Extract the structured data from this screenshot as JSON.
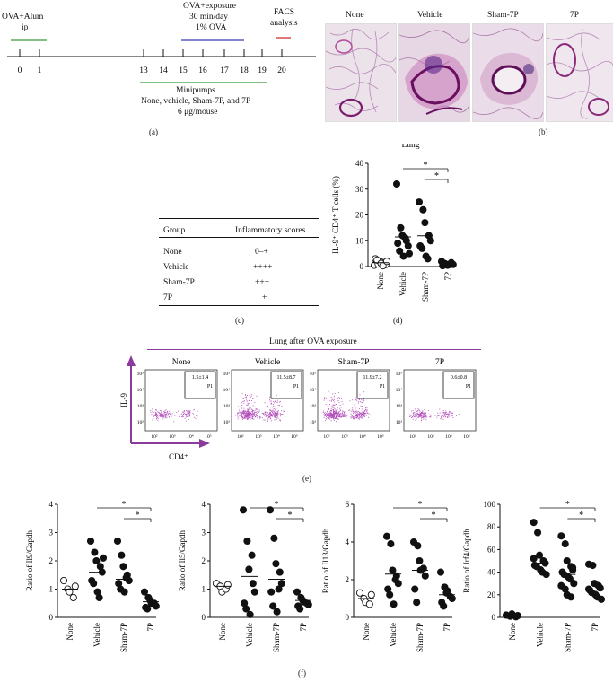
{
  "panel_a": {
    "label": "(a)",
    "ova_alum": "OVA+Alum",
    "ip": "ip",
    "ova_exposure": "OVA+exposure",
    "exposure_time": "30 min/day",
    "exposure_conc": "1% OVA",
    "facs": "FACS",
    "analysis": "analysis",
    "ticks": [
      "0",
      "1",
      "13",
      "14",
      "15",
      "16",
      "17",
      "18",
      "19",
      "20"
    ],
    "minipumps": "Minipumps",
    "groups": "None, vehicle, Sham-7P, and 7P",
    "dose": "6 μg/mouse",
    "colors": {
      "alum": "#3a9a3a",
      "exposure": "#3b3bb0",
      "facs": "#cc2222",
      "pumps": "#3a9a3a"
    }
  },
  "panel_b": {
    "label": "(b)",
    "titles": [
      "None",
      "Vehicle",
      "Sham-7P",
      "7P"
    ]
  },
  "panel_c": {
    "label": "(c)",
    "headers": [
      "Group",
      "Inflammatory scores"
    ],
    "rows": [
      {
        "group": "None",
        "score": "0–+"
      },
      {
        "group": "Vehicle",
        "score": "++++"
      },
      {
        "group": "Sham-7P",
        "score": "+++"
      },
      {
        "group": "7P",
        "score": "+"
      }
    ]
  },
  "panel_d": {
    "label": "(d)"
  },
  "panel_e": {
    "label": "(e)",
    "title": "Lung after OVA exposure",
    "titles": [
      "None",
      "Vehicle",
      "Sham-7P",
      "7P"
    ],
    "gate_values": [
      "1.5±1.4",
      "11.5±8.7",
      "11.9±7.2",
      "0.6±0.8"
    ],
    "gate_name": "P1",
    "y_axis": "IL-9",
    "x_axis": "CD4⁺",
    "accent": "#8a3a9a"
  },
  "panel_f": {
    "label": "(f)"
  },
  "chart_data": [
    {
      "id": "d",
      "type": "scatter",
      "title": "Lung",
      "ylabel": "IL-9⁺ CD4⁺ T cells (%)",
      "categories": [
        "None",
        "Vehicle",
        "Sham-7P",
        "7P"
      ],
      "ylim": [
        0,
        40
      ],
      "yticks": [
        0,
        10,
        20,
        30,
        40
      ],
      "open_categories": [
        0
      ],
      "points": [
        [
          0.5,
          1,
          2,
          1.5,
          0.8,
          3,
          2.5,
          1.2,
          0.3,
          2
        ],
        [
          32,
          15,
          12,
          10,
          8,
          9,
          6,
          4,
          11,
          5
        ],
        [
          25,
          22,
          17,
          12,
          10,
          8,
          7,
          4,
          3
        ],
        [
          2,
          1,
          0.5,
          1.5,
          0.8,
          0.3,
          1.2,
          0.6,
          1
        ]
      ],
      "means": [
        1.5,
        11.5,
        11.9,
        0.6
      ],
      "significance": [
        {
          "from": 1,
          "to": 3,
          "label": "*"
        },
        {
          "from": 2,
          "to": 3,
          "label": "*"
        }
      ]
    },
    {
      "id": "f1",
      "type": "scatter",
      "ylabel": "Ratio of Il9/Gapdh",
      "categories": [
        "None",
        "Vehicle",
        "Sham-7P",
        "7P"
      ],
      "ylim": [
        0,
        4
      ],
      "yticks": [
        0,
        1,
        2,
        3,
        4
      ],
      "open_categories": [
        0
      ],
      "points": [
        [
          1.3,
          1.0,
          0.9,
          0.7,
          1.1
        ],
        [
          2.7,
          2.3,
          2.0,
          1.8,
          1.6,
          1.3,
          1.2,
          0.9,
          0.7,
          2.1
        ],
        [
          2.7,
          2.2,
          1.8,
          1.5,
          1.3,
          1.2,
          1.0,
          0.9,
          1.4
        ],
        [
          0.9,
          0.7,
          0.6,
          0.5,
          0.4,
          0.35,
          0.3,
          0.5
        ]
      ],
      "means": [
        1.0,
        1.6,
        1.35,
        0.55
      ],
      "significance": [
        {
          "from": 1,
          "to": 3,
          "label": "*"
        },
        {
          "from": 2,
          "to": 3,
          "label": "*"
        }
      ]
    },
    {
      "id": "f2",
      "type": "scatter",
      "ylabel": "Ratio of Il5/Gapdh",
      "categories": [
        "None",
        "Vehicle",
        "Sham-7P",
        "7P"
      ],
      "ylim": [
        0,
        4
      ],
      "yticks": [
        0,
        1,
        2,
        3,
        4
      ],
      "open_categories": [
        0
      ],
      "points": [
        [
          1.2,
          1.1,
          0.9,
          1.0,
          1.15
        ],
        [
          3.8,
          2.7,
          1.7,
          1.2,
          0.9,
          0.5,
          0.3,
          0.1,
          2.2
        ],
        [
          3.8,
          2.8,
          1.9,
          1.6,
          1.2,
          0.9,
          0.4,
          0.2,
          1.0
        ],
        [
          0.9,
          0.7,
          0.6,
          0.5,
          0.45,
          0.4,
          0.3,
          0.55
        ]
      ],
      "means": [
        1.1,
        1.45,
        1.35,
        0.6
      ],
      "significance": [
        {
          "from": 1,
          "to": 3,
          "label": "*"
        },
        {
          "from": 2,
          "to": 3,
          "label": "*"
        }
      ]
    },
    {
      "id": "f3",
      "type": "scatter",
      "ylabel": "Ratio of Il13/Gapdh",
      "categories": [
        "None",
        "Vehicle",
        "Sham-7P",
        "7P"
      ],
      "ylim": [
        0,
        6
      ],
      "yticks": [
        0,
        2,
        4,
        6
      ],
      "open_categories": [
        0
      ],
      "points": [
        [
          1.3,
          1.0,
          0.8,
          0.7,
          1.2
        ],
        [
          4.3,
          3.9,
          2.5,
          2.2,
          1.8,
          1.5,
          1.2,
          0.7,
          2.0
        ],
        [
          4.0,
          3.8,
          3.0,
          2.6,
          2.2,
          1.5,
          0.8,
          2.5
        ],
        [
          2.4,
          1.6,
          1.3,
          1.1,
          1.0,
          0.8,
          0.6,
          1.4
        ]
      ],
      "means": [
        1.0,
        2.3,
        2.5,
        1.2
      ],
      "significance": [
        {
          "from": 1,
          "to": 3,
          "label": "*"
        },
        {
          "from": 2,
          "to": 3,
          "label": "*"
        }
      ]
    },
    {
      "id": "f4",
      "type": "scatter",
      "ylabel": "Ratio of Irf4/Gapdh",
      "categories": [
        "None",
        "Vehicle",
        "Sham-7P",
        "7P"
      ],
      "ylim": [
        0,
        100
      ],
      "yticks": [
        0,
        20,
        40,
        60,
        80,
        100
      ],
      "open_categories": [],
      "points": [
        [
          2,
          1,
          3,
          0.5,
          1.5
        ],
        [
          84,
          75,
          55,
          50,
          48,
          46,
          45,
          42,
          40,
          38,
          52
        ],
        [
          72,
          65,
          50,
          45,
          42,
          40,
          38,
          36,
          34,
          30,
          28,
          25,
          20,
          18,
          44
        ],
        [
          47,
          46,
          30,
          28,
          26,
          24,
          22,
          20,
          18,
          16,
          25
        ]
      ],
      "means": [
        1.5,
        48,
        38,
        24
      ],
      "significance": [
        {
          "from": 1,
          "to": 3,
          "label": "*"
        },
        {
          "from": 2,
          "to": 3,
          "label": "*"
        }
      ]
    }
  ]
}
